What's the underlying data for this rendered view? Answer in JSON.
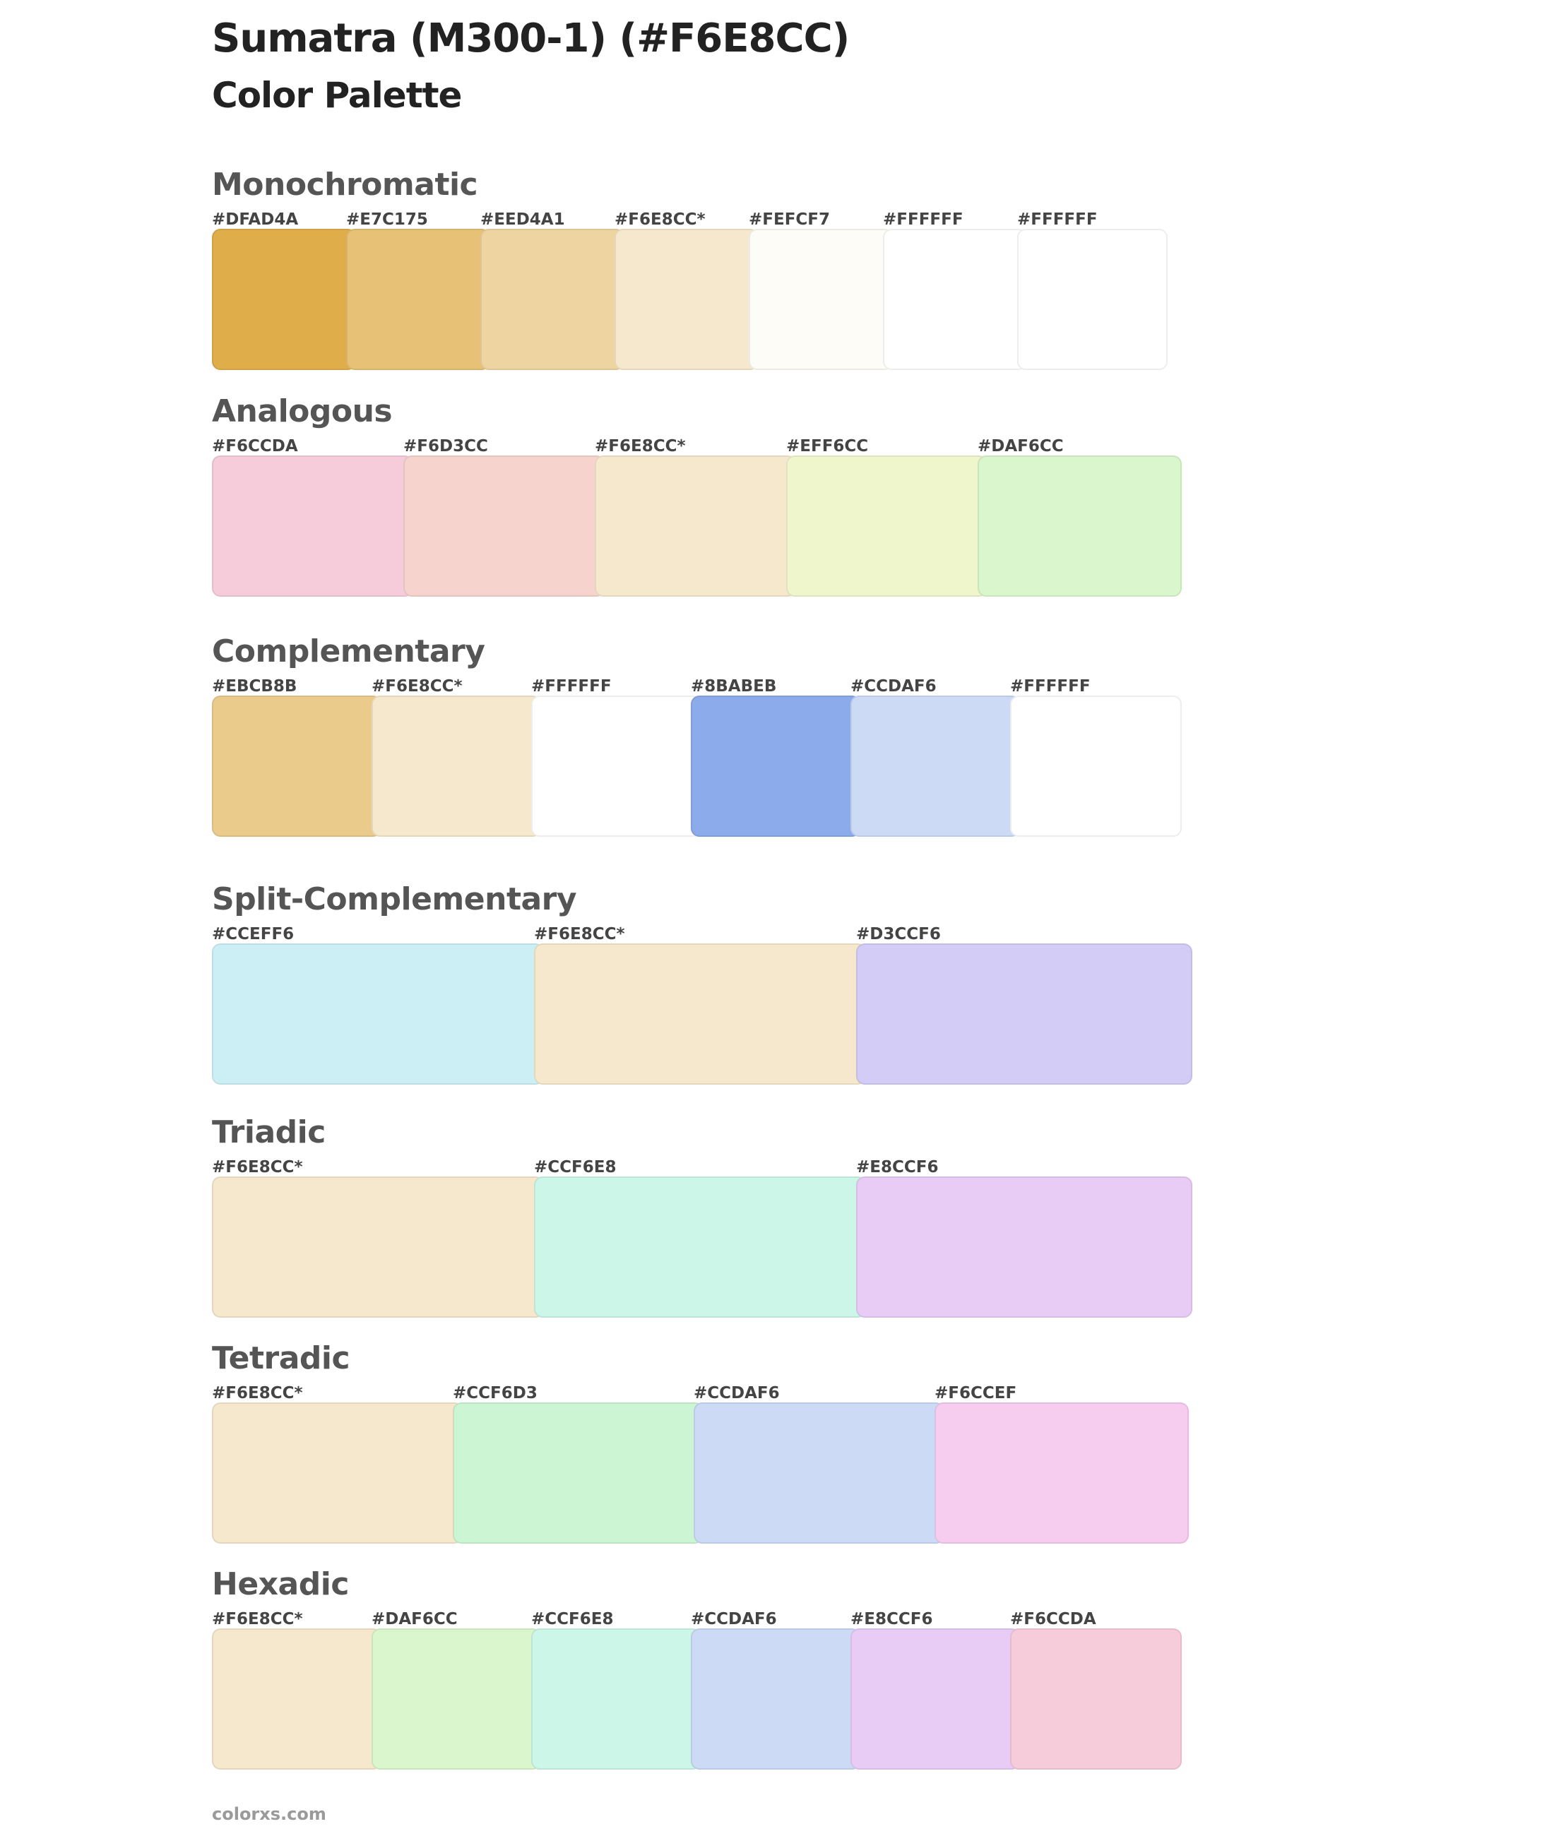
{
  "title": "Sumatra (M300-1) (#F6E8CC)",
  "subtitle": "Color Palette",
  "footer": "colorxs.com",
  "sections": [
    {
      "title": "Monochromatic",
      "swatches": [
        {
          "label": "#DFAD4A",
          "color": "#DFAD4A"
        },
        {
          "label": "#E7C175",
          "color": "#E7C175"
        },
        {
          "label": "#EED4A1",
          "color": "#EED4A1"
        },
        {
          "label": "#F6E8CC*",
          "color": "#F6E8CC"
        },
        {
          "label": "#FEFCF7",
          "color": "#FEFCF7"
        },
        {
          "label": "#FFFFFF",
          "color": "#FFFFFF"
        },
        {
          "label": "#FFFFFF",
          "color": "#FFFFFF"
        }
      ]
    },
    {
      "title": "Analogous",
      "swatches": [
        {
          "label": "#F6CCDA",
          "color": "#F6CCDA"
        },
        {
          "label": "#F6D3CC",
          "color": "#F6D3CC"
        },
        {
          "label": "#F6E8CC*",
          "color": "#F6E8CC"
        },
        {
          "label": "#EFF6CC",
          "color": "#EFF6CC"
        },
        {
          "label": "#DAF6CC",
          "color": "#DAF6CC"
        }
      ]
    },
    {
      "title": "Complementary",
      "swatches": [
        {
          "label": "#EBCB8B",
          "color": "#EBCB8B"
        },
        {
          "label": "#F6E8CC*",
          "color": "#F6E8CC"
        },
        {
          "label": "#FFFFFF",
          "color": "#FFFFFF"
        },
        {
          "label": "#8BABEB",
          "color": "#8BABEB"
        },
        {
          "label": "#CCDAF6",
          "color": "#CCDAF6"
        },
        {
          "label": "#FFFFFF",
          "color": "#FFFFFF"
        }
      ]
    },
    {
      "title": "Split-Complementary",
      "swatches": [
        {
          "label": "#CCEFF6",
          "color": "#CCEFF6"
        },
        {
          "label": "#F6E8CC*",
          "color": "#F6E8CC"
        },
        {
          "label": "#D3CCF6",
          "color": "#D3CCF6"
        }
      ]
    },
    {
      "title": "Triadic",
      "swatches": [
        {
          "label": "#F6E8CC*",
          "color": "#F6E8CC"
        },
        {
          "label": "#CCF6E8",
          "color": "#CCF6E8"
        },
        {
          "label": "#E8CCF6",
          "color": "#E8CCF6"
        }
      ]
    },
    {
      "title": "Tetradic",
      "swatches": [
        {
          "label": "#F6E8CC*",
          "color": "#F6E8CC"
        },
        {
          "label": "#CCF6D3",
          "color": "#CCF6D3"
        },
        {
          "label": "#CCDAF6",
          "color": "#CCDAF6"
        },
        {
          "label": "#F6CCEF",
          "color": "#F6CCEF"
        }
      ]
    },
    {
      "title": "Hexadic",
      "swatches": [
        {
          "label": "#F6E8CC*",
          "color": "#F6E8CC"
        },
        {
          "label": "#DAF6CC",
          "color": "#DAF6CC"
        },
        {
          "label": "#CCF6E8",
          "color": "#CCF6E8"
        },
        {
          "label": "#CCDAF6",
          "color": "#CCDAF6"
        },
        {
          "label": "#E8CCF6",
          "color": "#E8CCF6"
        },
        {
          "label": "#F6CCDA",
          "color": "#F6CCDA"
        }
      ]
    }
  ]
}
